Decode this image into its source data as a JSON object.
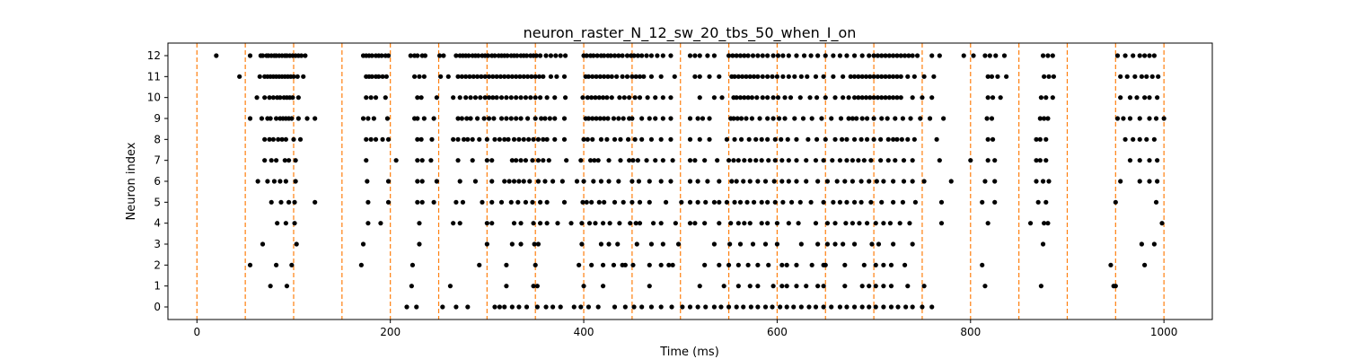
{
  "chart_data": {
    "type": "scatter",
    "title": "neuron_raster_N_12_sw_20_tbs_50_when_I_on",
    "xlabel": "Time (ms)",
    "ylabel": "Neuron index",
    "xlim": [
      -30,
      1050
    ],
    "ylim": [
      -0.6,
      12.6
    ],
    "xticks": [
      0,
      200,
      400,
      600,
      800,
      1000
    ],
    "yticks": [
      0,
      1,
      2,
      3,
      4,
      5,
      6,
      7,
      8,
      9,
      10,
      11,
      12
    ],
    "grid": false,
    "marker_color": "#000000",
    "vline_color": "#ff7f0e",
    "vlines": [
      0,
      50,
      100,
      150,
      200,
      250,
      300,
      350,
      400,
      450,
      500,
      550,
      600,
      650,
      700,
      750,
      800,
      850,
      900,
      950,
      1000
    ],
    "spikes": [
      {
        "neuron": 12,
        "times": [
          20,
          55,
          66,
          68,
          72,
          74,
          77,
          80,
          82,
          85,
          88,
          91,
          93,
          96,
          99,
          102,
          105,
          108,
          112,
          172,
          175,
          178,
          181,
          185,
          188,
          191,
          195,
          198,
          221,
          225,
          228,
          233,
          236,
          251,
          255,
          268,
          272,
          275,
          278,
          281,
          285,
          288,
          291,
          295,
          298,
          301,
          305,
          308,
          312,
          315,
          318,
          321,
          325,
          328,
          331,
          335,
          338,
          341,
          345,
          348,
          351,
          355,
          361,
          366,
          371,
          376,
          381,
          400,
          403,
          407,
          410,
          414,
          418,
          421,
          425,
          428,
          432,
          436,
          440,
          445,
          449,
          452,
          456,
          460,
          465,
          470,
          476,
          482,
          490,
          510,
          515,
          520,
          528,
          535,
          550,
          554,
          558,
          562,
          566,
          570,
          575,
          580,
          585,
          590,
          596,
          601,
          606,
          612,
          620,
          628,
          635,
          642,
          650,
          658,
          665,
          672,
          680,
          688,
          695,
          700,
          704,
          708,
          712,
          716,
          720,
          724,
          728,
          732,
          736,
          740,
          745,
          760,
          768,
          793,
          803,
          815,
          820,
          826,
          835,
          875,
          880,
          885,
          952,
          960,
          968,
          975,
          980,
          985,
          990
        ]
      },
      {
        "neuron": 11,
        "times": [
          44,
          65,
          70,
          73,
          76,
          79,
          82,
          85,
          88,
          91,
          94,
          97,
          100,
          104,
          110,
          175,
          178,
          181,
          185,
          188,
          192,
          196,
          225,
          230,
          235,
          252,
          260,
          270,
          274,
          278,
          282,
          286,
          290,
          294,
          298,
          302,
          306,
          310,
          314,
          318,
          322,
          326,
          330,
          334,
          338,
          342,
          346,
          350,
          354,
          358,
          366,
          372,
          380,
          402,
          405,
          409,
          413,
          417,
          421,
          425,
          429,
          434,
          440,
          445,
          450,
          454,
          458,
          462,
          470,
          480,
          494,
          515,
          520,
          530,
          540,
          553,
          556,
          560,
          564,
          568,
          572,
          576,
          580,
          585,
          590,
          595,
          600,
          606,
          612,
          618,
          625,
          631,
          640,
          648,
          658,
          668,
          676,
          680,
          684,
          688,
          692,
          696,
          700,
          704,
          708,
          712,
          716,
          720,
          724,
          728,
          735,
          742,
          752,
          762,
          818,
          822,
          828,
          837,
          876,
          881,
          886,
          955,
          962,
          970,
          977,
          982,
          988,
          994
        ]
      },
      {
        "neuron": 10,
        "times": [
          62,
          70,
          75,
          79,
          83,
          86,
          90,
          93,
          96,
          99,
          105,
          175,
          180,
          185,
          195,
          228,
          232,
          248,
          265,
          272,
          278,
          283,
          288,
          293,
          298,
          302,
          306,
          310,
          315,
          320,
          325,
          330,
          335,
          340,
          345,
          350,
          355,
          362,
          370,
          381,
          399,
          404,
          408,
          412,
          416,
          420,
          424,
          429,
          437,
          442,
          447,
          453,
          458,
          466,
          474,
          482,
          490,
          520,
          535,
          543,
          555,
          558,
          562,
          566,
          570,
          574,
          579,
          585,
          590,
          596,
          601,
          608,
          614,
          624,
          634,
          641,
          650,
          660,
          668,
          674,
          680,
          684,
          688,
          692,
          696,
          700,
          704,
          708,
          712,
          716,
          720,
          724,
          728,
          740,
          750,
          760,
          818,
          823,
          831,
          873,
          878,
          885,
          955,
          965,
          972,
          980,
          985,
          993
        ]
      },
      {
        "neuron": 9,
        "times": [
          55,
          67,
          73,
          76,
          82,
          86,
          89,
          92,
          95,
          98,
          105,
          114,
          122,
          172,
          177,
          183,
          197,
          225,
          228,
          235,
          245,
          270,
          274,
          279,
          283,
          290,
          297,
          302,
          307,
          315,
          320,
          325,
          330,
          335,
          342,
          350,
          356,
          360,
          365,
          370,
          380,
          402,
          405,
          409,
          413,
          417,
          421,
          425,
          431,
          436,
          441,
          447,
          450,
          460,
          468,
          474,
          482,
          490,
          510,
          518,
          523,
          530,
          552,
          555,
          559,
          563,
          568,
          574,
          582,
          590,
          596,
          602,
          608,
          618,
          627,
          636,
          646,
          656,
          666,
          674,
          678,
          682,
          688,
          693,
          700,
          708,
          714,
          722,
          730,
          738,
          748,
          758,
          772,
          817,
          822,
          872,
          876,
          880,
          952,
          958,
          965,
          975,
          985,
          992,
          1000
        ]
      },
      {
        "neuron": 8,
        "times": [
          70,
          75,
          79,
          84,
          88,
          92,
          100,
          107,
          175,
          180,
          185,
          192,
          198,
          228,
          232,
          243,
          265,
          270,
          276,
          280,
          285,
          292,
          300,
          308,
          313,
          318,
          322,
          328,
          333,
          338,
          343,
          348,
          353,
          358,
          362,
          370,
          380,
          400,
          404,
          409,
          418,
          424,
          432,
          438,
          446,
          453,
          460,
          470,
          480,
          490,
          510,
          520,
          530,
          548,
          556,
          563,
          571,
          578,
          584,
          590,
          598,
          604,
          611,
          620,
          632,
          641,
          650,
          660,
          667,
          672,
          680,
          687,
          693,
          700,
          707,
          715,
          720,
          724,
          729,
          735,
          742,
          765,
          818,
          823,
          868,
          872,
          878,
          960,
          968,
          975,
          982,
          990
        ]
      },
      {
        "neuron": 7,
        "times": [
          70,
          77,
          82,
          91,
          95,
          102,
          175,
          206,
          228,
          233,
          242,
          270,
          285,
          300,
          305,
          326,
          330,
          335,
          340,
          347,
          353,
          358,
          364,
          382,
          397,
          407,
          411,
          415,
          426,
          438,
          447,
          451,
          456,
          465,
          474,
          482,
          492,
          510,
          515,
          525,
          538,
          550,
          555,
          560,
          566,
          572,
          578,
          584,
          591,
          598,
          605,
          612,
          620,
          630,
          640,
          648,
          657,
          665,
          672,
          678,
          684,
          690,
          697,
          707,
          715,
          722,
          731,
          740,
          768,
          800,
          818,
          825,
          868,
          872,
          878,
          965,
          975,
          985,
          993
        ]
      },
      {
        "neuron": 6,
        "times": [
          63,
          73,
          80,
          86,
          92,
          102,
          176,
          198,
          228,
          233,
          248,
          272,
          288,
          305,
          318,
          323,
          328,
          333,
          338,
          344,
          353,
          360,
          368,
          378,
          393,
          400,
          410,
          418,
          426,
          436,
          450,
          457,
          468,
          480,
          490,
          510,
          518,
          528,
          540,
          553,
          558,
          565,
          572,
          580,
          588,
          597,
          605,
          612,
          620,
          630,
          642,
          652,
          662,
          670,
          678,
          687,
          695,
          703,
          710,
          720,
          731,
          740,
          752,
          780,
          815,
          825,
          868,
          875,
          881,
          955,
          975,
          985,
          993
        ]
      },
      {
        "neuron": 5,
        "times": [
          77,
          87,
          95,
          101,
          122,
          177,
          198,
          228,
          233,
          245,
          268,
          275,
          295,
          305,
          315,
          325,
          332,
          340,
          347,
          355,
          362,
          380,
          399,
          403,
          408,
          416,
          421,
          432,
          441,
          450,
          458,
          468,
          485,
          501,
          510,
          518,
          526,
          535,
          540,
          548,
          556,
          562,
          569,
          576,
          584,
          590,
          598,
          606,
          615,
          624,
          635,
          648,
          658,
          665,
          672,
          680,
          687,
          697,
          708,
          720,
          730,
          743,
          770,
          812,
          825,
          870,
          878,
          950,
          992
        ]
      },
      {
        "neuron": 4,
        "times": [
          83,
          92,
          101,
          177,
          190,
          230,
          265,
          272,
          300,
          305,
          328,
          335,
          348,
          355,
          362,
          373,
          387,
          398,
          406,
          412,
          420,
          427,
          437,
          448,
          454,
          458,
          472,
          480,
          495,
          510,
          515,
          525,
          540,
          552,
          560,
          566,
          572,
          584,
          590,
          600,
          612,
          622,
          640,
          652,
          660,
          671,
          678,
          685,
          693,
          702,
          710,
          717,
          727,
          737,
          770,
          818,
          862,
          876,
          880,
          998
        ]
      },
      {
        "neuron": 3,
        "times": [
          68,
          103,
          172,
          230,
          300,
          326,
          335,
          349,
          353,
          398,
          418,
          426,
          435,
          455,
          470,
          482,
          498,
          535,
          551,
          562,
          575,
          588,
          600,
          625,
          642,
          652,
          660,
          668,
          680,
          698,
          705,
          720,
          740,
          875,
          977,
          990
        ]
      },
      {
        "neuron": 2,
        "times": [
          55,
          82,
          98,
          170,
          223,
          292,
          320,
          350,
          395,
          408,
          420,
          431,
          440,
          443,
          451,
          468,
          480,
          488,
          492,
          525,
          540,
          550,
          560,
          570,
          580,
          591,
          605,
          610,
          620,
          636,
          648,
          650,
          670,
          690,
          702,
          710,
          718,
          732,
          812,
          945,
          980
        ]
      },
      {
        "neuron": 1,
        "times": [
          76,
          93,
          222,
          262,
          320,
          348,
          352,
          400,
          420,
          468,
          520,
          545,
          560,
          572,
          580,
          596,
          605,
          610,
          620,
          630,
          642,
          648,
          670,
          688,
          695,
          702,
          710,
          718,
          735,
          752,
          815,
          873,
          948,
          950
        ]
      },
      {
        "neuron": 0,
        "times": [
          217,
          227,
          254,
          268,
          280,
          308,
          313,
          318,
          326,
          333,
          341,
          352,
          361,
          368,
          376,
          390,
          397,
          405,
          415,
          432,
          443,
          452,
          460,
          470,
          480,
          491,
          502,
          510,
          518,
          526,
          535,
          542,
          550,
          558,
          565,
          573,
          580,
          588,
          595,
          603,
          610,
          617,
          625,
          633,
          640,
          648,
          656,
          665,
          672,
          680,
          688,
          695,
          702,
          710,
          718,
          725,
          733,
          740,
          750,
          760
        ]
      }
    ]
  }
}
